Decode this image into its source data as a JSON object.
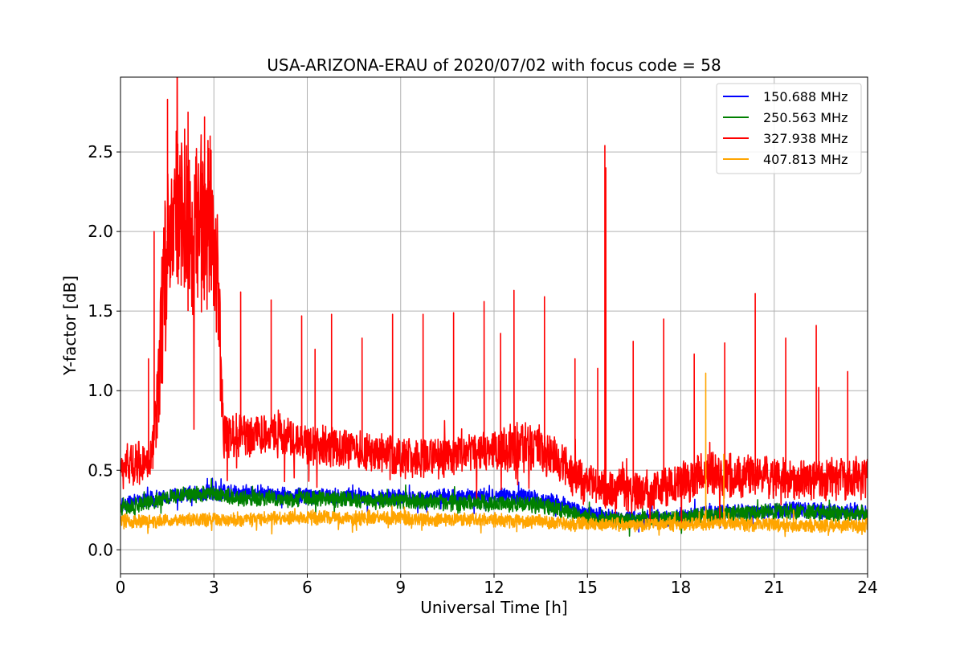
{
  "chart_data": {
    "type": "line",
    "title": "USA-ARIZONA-ERAU of 2020/07/02 with focus code = 58",
    "xlabel": "Universal Time [h]",
    "ylabel": "Y-factor [dB]",
    "xlim": [
      0,
      24
    ],
    "ylim": [
      -0.15,
      2.97
    ],
    "xticks": [
      0,
      3,
      6,
      9,
      12,
      15,
      18,
      21,
      24
    ],
    "xtick_labels": [
      "0",
      "3",
      "6",
      "9",
      "12",
      "15",
      "18",
      "21",
      "24"
    ],
    "yticks": [
      0.0,
      0.5,
      1.0,
      1.5,
      2.0,
      2.5
    ],
    "ytick_labels": [
      "0.0",
      "0.5",
      "1.0",
      "1.5",
      "2.0",
      "2.5"
    ],
    "grid": true,
    "legend_position": "top-right",
    "series": [
      {
        "name": "150.688 MHz",
        "color": "#0000ff",
        "x": [
          0,
          1,
          2,
          3,
          4,
          5,
          6,
          7,
          8,
          9,
          10,
          11,
          12,
          13,
          14,
          15,
          16,
          17,
          18,
          19,
          20,
          21,
          22,
          23,
          24
        ],
        "y": [
          0.28,
          0.32,
          0.35,
          0.36,
          0.36,
          0.35,
          0.34,
          0.34,
          0.33,
          0.33,
          0.33,
          0.33,
          0.34,
          0.33,
          0.3,
          0.22,
          0.2,
          0.2,
          0.2,
          0.24,
          0.24,
          0.25,
          0.25,
          0.24,
          0.24
        ],
        "noise": [
          0.08,
          0.08,
          0.08,
          0.08,
          0.08,
          0.08,
          0.08,
          0.08,
          0.08,
          0.08,
          0.08,
          0.08,
          0.08,
          0.08,
          0.08,
          0.08,
          0.08,
          0.08,
          0.08,
          0.08,
          0.08,
          0.08,
          0.08,
          0.08,
          0.08
        ],
        "spikes": []
      },
      {
        "name": "250.563 MHz",
        "color": "#008000",
        "x": [
          0,
          1,
          2,
          3,
          4,
          5,
          6,
          7,
          8,
          9,
          10,
          11,
          12,
          13,
          14,
          15,
          16,
          17,
          18,
          19,
          20,
          21,
          22,
          23,
          24
        ],
        "y": [
          0.26,
          0.3,
          0.35,
          0.35,
          0.32,
          0.32,
          0.32,
          0.32,
          0.31,
          0.31,
          0.3,
          0.3,
          0.29,
          0.29,
          0.26,
          0.2,
          0.19,
          0.19,
          0.2,
          0.22,
          0.23,
          0.24,
          0.24,
          0.23,
          0.23
        ],
        "noise": [
          0.08,
          0.08,
          0.08,
          0.08,
          0.08,
          0.08,
          0.08,
          0.08,
          0.08,
          0.08,
          0.08,
          0.08,
          0.08,
          0.08,
          0.08,
          0.08,
          0.08,
          0.08,
          0.08,
          0.08,
          0.08,
          0.08,
          0.08,
          0.08,
          0.08
        ],
        "spikes": []
      },
      {
        "name": "327.938 MHz",
        "color": "#ff0000",
        "x": [
          0,
          0.5,
          1.0,
          1.2,
          1.4,
          1.7,
          2.0,
          2.3,
          2.6,
          2.9,
          3.15,
          3.3,
          4,
          5,
          6,
          7,
          8,
          9,
          10,
          11,
          12,
          12.7,
          13,
          13.5,
          14,
          14.5,
          15,
          15.5,
          16,
          16.5,
          17,
          17.5,
          18,
          18.5,
          19,
          19.5,
          20,
          21,
          22,
          23,
          24
        ],
        "y": [
          0.5,
          0.55,
          0.55,
          0.9,
          1.75,
          2.15,
          2.05,
          2.0,
          2.05,
          2.05,
          1.7,
          0.72,
          0.72,
          0.74,
          0.66,
          0.64,
          0.62,
          0.58,
          0.58,
          0.6,
          0.62,
          0.63,
          0.66,
          0.63,
          0.58,
          0.48,
          0.42,
          0.4,
          0.36,
          0.36,
          0.38,
          0.4,
          0.42,
          0.44,
          0.48,
          0.46,
          0.46,
          0.46,
          0.44,
          0.45,
          0.46
        ],
        "noise": [
          0.22,
          0.22,
          0.22,
          0.42,
          0.9,
          0.9,
          0.9,
          0.9,
          0.9,
          0.9,
          0.7,
          0.22,
          0.22,
          0.22,
          0.2,
          0.2,
          0.2,
          0.2,
          0.2,
          0.2,
          0.2,
          0.28,
          0.26,
          0.24,
          0.22,
          0.22,
          0.22,
          0.22,
          0.22,
          0.22,
          0.22,
          0.22,
          0.22,
          0.22,
          0.22,
          0.22,
          0.22,
          0.22,
          0.22,
          0.22,
          0.22
        ],
        "spikes": [
          [
            0.9,
            1.2
          ],
          [
            1.1,
            2.0
          ],
          [
            1.55,
            2.83
          ],
          [
            1.9,
            2.55
          ],
          [
            2.25,
            2.75
          ],
          [
            2.8,
            2.72
          ],
          [
            3.0,
            2.6
          ],
          [
            4.0,
            1.62
          ],
          [
            5.0,
            1.57
          ],
          [
            6.0,
            1.47
          ],
          [
            6.45,
            1.26
          ],
          [
            7.0,
            1.48
          ],
          [
            8.0,
            1.33
          ],
          [
            9.0,
            1.48
          ],
          [
            10.0,
            1.48
          ],
          [
            11.0,
            1.49
          ],
          [
            12.0,
            1.56
          ],
          [
            12.55,
            1.36
          ],
          [
            13.0,
            1.63
          ],
          [
            14.0,
            1.59
          ],
          [
            15.0,
            1.2
          ],
          [
            15.75,
            1.14
          ],
          [
            16.0,
            2.54
          ],
          [
            16.05,
            2.4
          ],
          [
            16.95,
            1.31
          ],
          [
            17.95,
            1.45
          ],
          [
            18.95,
            1.23
          ],
          [
            19.95,
            1.3
          ],
          [
            20.95,
            1.61
          ],
          [
            21.95,
            1.33
          ],
          [
            22.95,
            1.41
          ],
          [
            23.05,
            1.02
          ],
          [
            24.0,
            1.12
          ]
        ]
      },
      {
        "name": "407.813 MHz",
        "color": "#ffa500",
        "x": [
          0,
          1,
          2,
          3,
          4,
          5,
          6,
          7,
          8,
          9,
          10,
          11,
          12,
          13,
          14,
          15,
          16,
          17,
          18,
          19,
          20,
          21,
          22,
          23,
          24
        ],
        "y": [
          0.18,
          0.18,
          0.19,
          0.19,
          0.19,
          0.2,
          0.2,
          0.2,
          0.2,
          0.2,
          0.19,
          0.19,
          0.19,
          0.18,
          0.17,
          0.16,
          0.16,
          0.16,
          0.16,
          0.17,
          0.16,
          0.16,
          0.15,
          0.15,
          0.15
        ],
        "noise": [
          0.07,
          0.07,
          0.07,
          0.07,
          0.07,
          0.07,
          0.07,
          0.07,
          0.07,
          0.07,
          0.07,
          0.07,
          0.07,
          0.07,
          0.07,
          0.07,
          0.07,
          0.07,
          0.07,
          0.07,
          0.07,
          0.07,
          0.07,
          0.07,
          0.07
        ],
        "spikes": [
          [
            18.8,
            1.11
          ],
          [
            19.4,
            0.6
          ]
        ]
      }
    ]
  }
}
